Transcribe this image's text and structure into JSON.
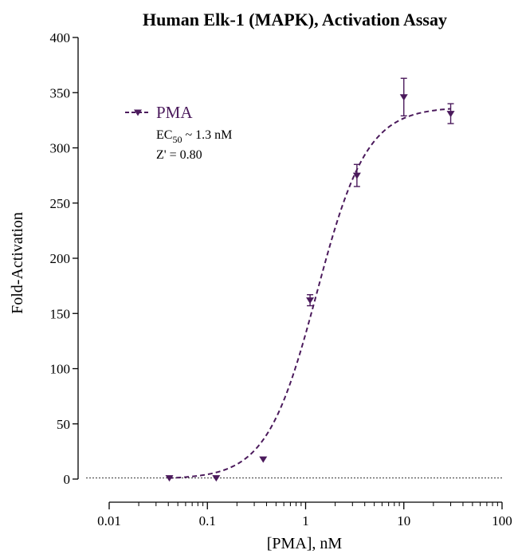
{
  "colors": {
    "series": "#4b1a5c",
    "axis": "#000000",
    "baseline": "#333333"
  },
  "chart_data": {
    "type": "scatter",
    "title": "Human Elk-1 (MAPK), Activation Assay",
    "xlabel": "[PMA], nM",
    "ylabel": "Fold-Activation",
    "x_scale": "log",
    "xlim": [
      0.01,
      100
    ],
    "ylim": [
      0,
      400
    ],
    "x_ticks": [
      0.01,
      0.1,
      1,
      10,
      100
    ],
    "x_tick_labels": [
      "0.01",
      "0.1",
      "1",
      "10",
      "100"
    ],
    "y_ticks": [
      0,
      50,
      100,
      150,
      200,
      250,
      300,
      350,
      400
    ],
    "y_tick_labels": [
      "0",
      "50",
      "100",
      "150",
      "200",
      "250",
      "300",
      "350",
      "400"
    ],
    "grid": false,
    "legend_position": "top-left",
    "baseline_y": 1,
    "series": [
      {
        "name": "PMA",
        "marker": "triangle-down",
        "points": [
          {
            "x": 0.041,
            "y": 1,
            "err": 0
          },
          {
            "x": 0.123,
            "y": 1,
            "err": 0
          },
          {
            "x": 0.37,
            "y": 18,
            "err": 0
          },
          {
            "x": 1.11,
            "y": 162,
            "err": 5
          },
          {
            "x": 3.33,
            "y": 275,
            "err": 10
          },
          {
            "x": 10,
            "y": 346,
            "err": 17
          },
          {
            "x": 30,
            "y": 331,
            "err": 9
          }
        ],
        "fit": {
          "model": "4PL",
          "bottom": 0,
          "top": 337,
          "ec50": 1.3,
          "hill": 1.7
        }
      }
    ],
    "annotations": {
      "ec50_prefix": "EC",
      "ec50_sub": "50",
      "ec50_suffix": " ~ 1.3 nM",
      "z_prime": "Z' = 0.80"
    }
  }
}
